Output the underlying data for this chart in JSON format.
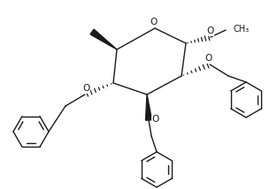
{
  "bg_color": "#ffffff",
  "line_color": "#1a1a1a",
  "line_width": 1.0,
  "figure_size": [
    3.05,
    2.14
  ],
  "dpi": 100,
  "xlim": [
    0,
    305
  ],
  "ylim": [
    0,
    214
  ]
}
